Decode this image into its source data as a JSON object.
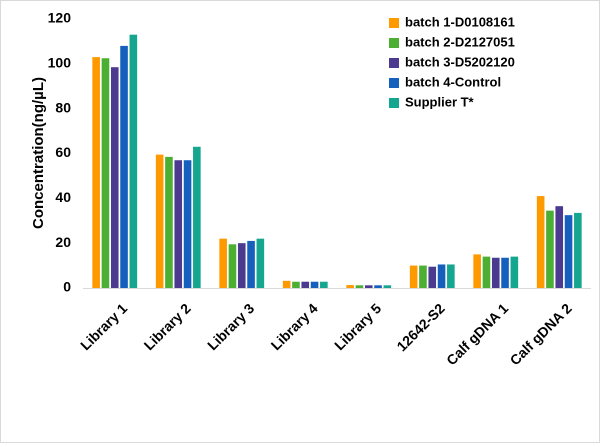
{
  "chart_data": {
    "type": "bar",
    "title": "",
    "xlabel": "",
    "ylabel": "Concentration(ng/µL)",
    "ylim": [
      0,
      120
    ],
    "yticks": [
      0,
      20,
      40,
      60,
      80,
      100,
      120
    ],
    "grid": false,
    "legend_position": "top-right",
    "categories": [
      "Library 1",
      "Library 2",
      "Library 3",
      "Library 4",
      "Library 5",
      "12642-S2",
      "Calf gDNA 1",
      "Calf gDNA 2"
    ],
    "series": [
      {
        "name": "batch 1-D0108161",
        "color": "#ff9900",
        "values": [
          103,
          59.5,
          22,
          3.2,
          1.3,
          10,
          15,
          41
        ]
      },
      {
        "name": "batch 2-D2127051",
        "color": "#4cae32",
        "values": [
          102.5,
          58.5,
          19.5,
          2.8,
          1.2,
          10,
          14,
          34.5
        ]
      },
      {
        "name": "batch 3-D5202120",
        "color": "#4b3a90",
        "values": [
          98.5,
          57,
          20,
          2.8,
          1.2,
          9.5,
          13.5,
          36.5
        ]
      },
      {
        "name": "batch 4-Control",
        "color": "#1560bd",
        "values": [
          108,
          57,
          21,
          2.8,
          1.2,
          10.5,
          13.5,
          32.5
        ]
      },
      {
        "name": "Supplier T*",
        "color": "#15a68f",
        "values": [
          113,
          63,
          22,
          2.8,
          1.2,
          10.5,
          14,
          33.5
        ]
      }
    ]
  }
}
